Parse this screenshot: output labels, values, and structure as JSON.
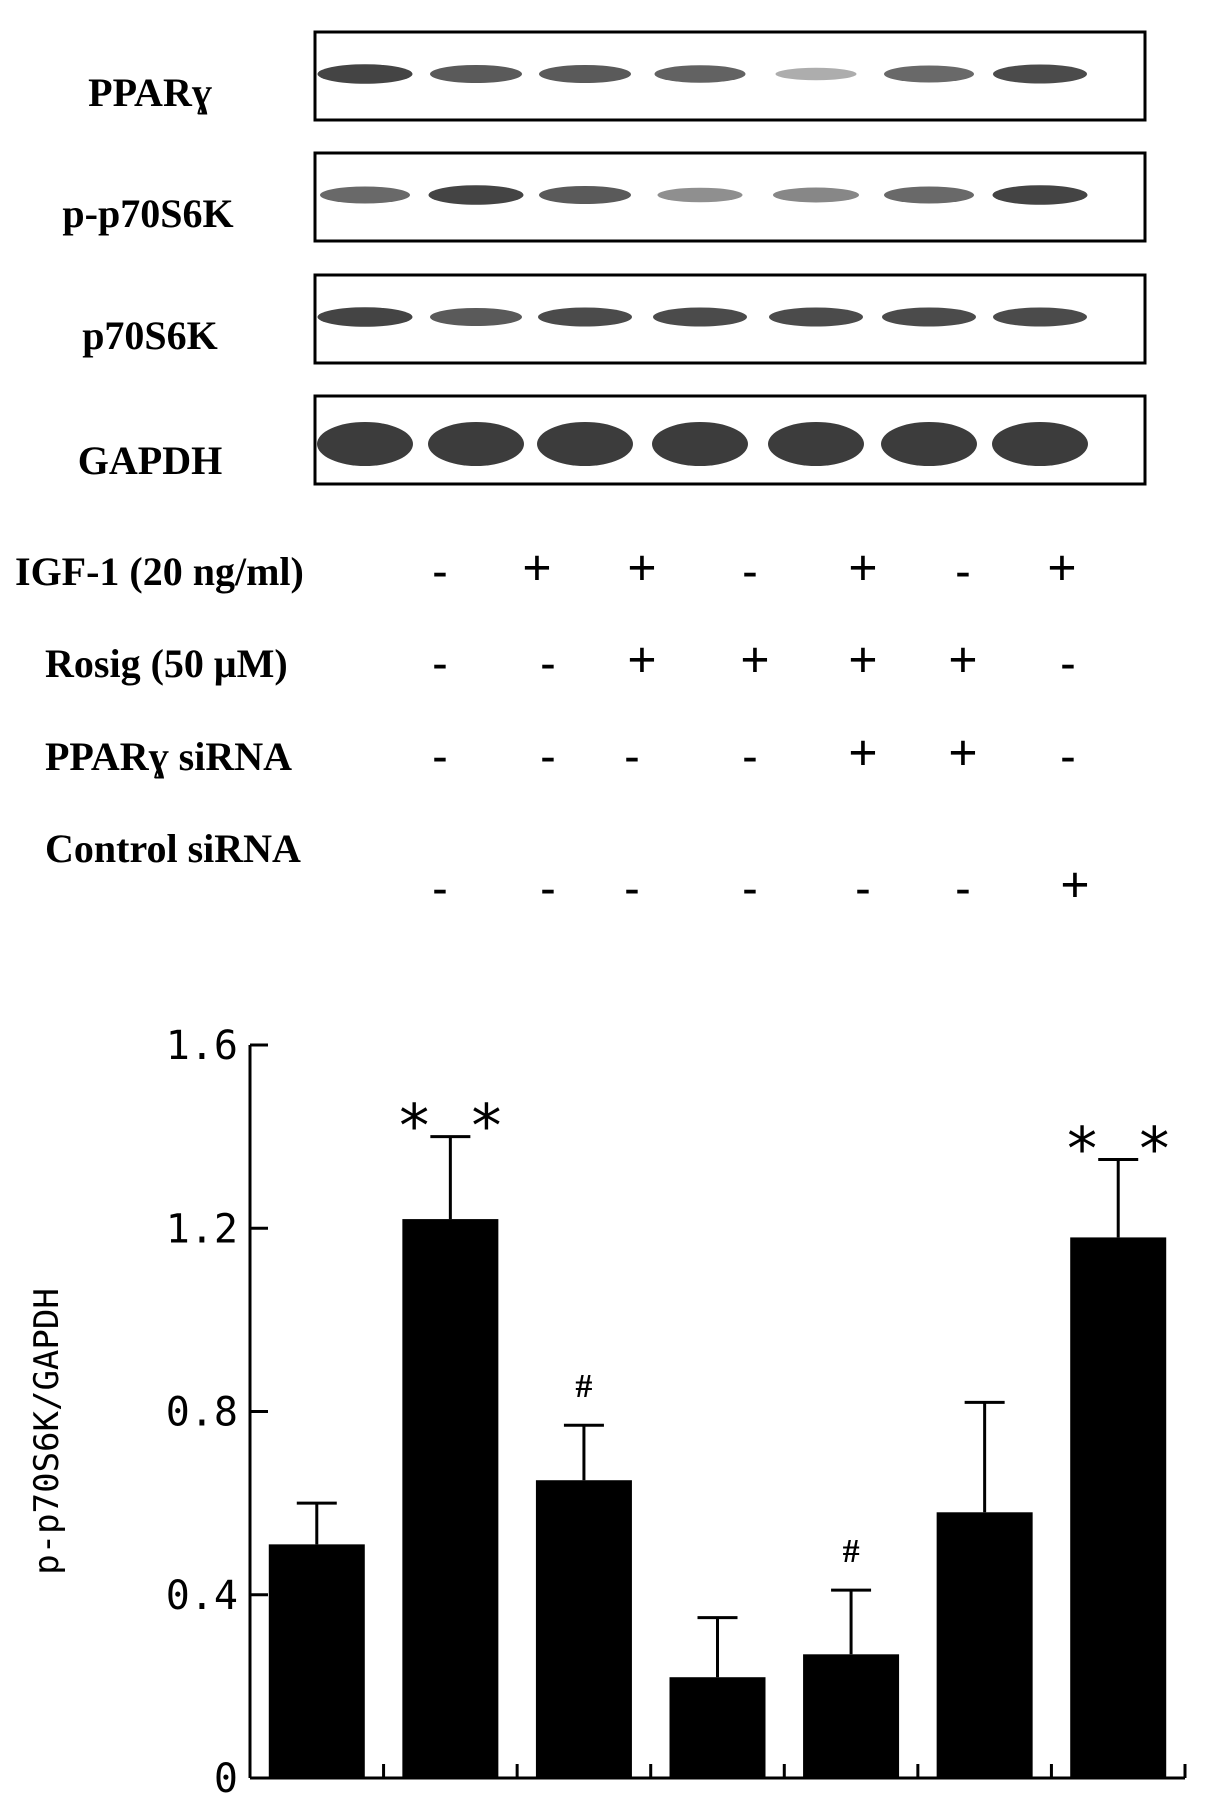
{
  "western_blot": {
    "lanes": 7,
    "rows": [
      {
        "label": "PPARɣ",
        "intensities": [
          0.95,
          0.8,
          0.8,
          0.75,
          0.25,
          0.7,
          0.9
        ]
      },
      {
        "label": "p-p70S6K",
        "intensities": [
          0.7,
          0.95,
          0.8,
          0.45,
          0.5,
          0.7,
          0.95
        ]
      },
      {
        "label": "p70S6K",
        "intensities": [
          0.95,
          0.8,
          0.9,
          0.9,
          0.9,
          0.9,
          0.9
        ]
      },
      {
        "label": "GAPDH",
        "intensities": [
          1.0,
          1.0,
          1.0,
          1.0,
          1.0,
          1.0,
          1.0
        ]
      }
    ]
  },
  "treatments": [
    {
      "label": "IGF-1 (20 ng/ml)",
      "signs": [
        "-",
        "+",
        "+",
        "-",
        "+",
        "-",
        "+"
      ]
    },
    {
      "label": "Rosig (50 μM)",
      "signs": [
        "-",
        "-",
        "+",
        "+",
        "+",
        "+",
        "-"
      ]
    },
    {
      "label": "PPARɣ  siRNA",
      "signs": [
        "-",
        "-",
        "-",
        "-",
        "+",
        "+",
        "-"
      ]
    },
    {
      "label": "Control siRNA",
      "signs": [
        "-",
        "-",
        "-",
        "-",
        "-",
        "-",
        "+"
      ]
    }
  ],
  "chart_data": {
    "type": "bar",
    "ylabel": "p-p70S6K/GAPDH",
    "ylim": [
      0,
      1.6
    ],
    "yticks": [
      "0",
      "0.4",
      "0.8",
      "1.2",
      "1.6"
    ],
    "series": [
      {
        "values": [
          0.51,
          1.22,
          0.65,
          0.22,
          0.27,
          0.58,
          1.18
        ],
        "errors": [
          0.09,
          0.18,
          0.12,
          0.13,
          0.14,
          0.24,
          0.17
        ],
        "annotations": [
          "",
          "* *",
          "#",
          "",
          "#",
          "",
          "* *"
        ]
      }
    ],
    "color": "#000000"
  }
}
